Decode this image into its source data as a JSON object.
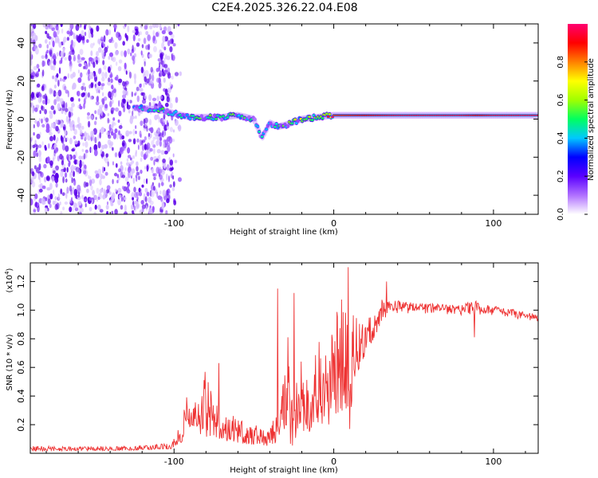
{
  "title": "C2E4.2025.326.22.04.E08",
  "chart_data": [
    {
      "type": "heatmap",
      "title": "C2E4.2025.326.22.04.E08",
      "xlabel": "Height of straight line (km)",
      "ylabel": "Frequency (Hz)",
      "xlim": [
        -190,
        128
      ],
      "ylim": [
        -50,
        50
      ],
      "x_ticks": [
        -100,
        0,
        100
      ],
      "x_tick_labels": [
        "-100",
        "0",
        "100"
      ],
      "y_ticks": [
        -40,
        -20,
        0,
        20,
        40
      ],
      "y_tick_labels": [
        "-40",
        "-20",
        "0",
        "20",
        "40"
      ],
      "colorbar": {
        "label": "Normalized spectral amplitude",
        "range": [
          0,
          1
        ],
        "ticks": [
          0.0,
          0.2,
          0.4,
          0.6,
          0.8
        ],
        "tick_labels": [
          "0.0",
          "0.2",
          "0.4",
          "0.6",
          "0.8"
        ],
        "colors": [
          "#ffffff",
          "#b070ff",
          "#5a00ff",
          "#0000ff",
          "#00c8ff",
          "#00ff60",
          "#a0ff00",
          "#ffff00",
          "#ff8000",
          "#ff0000",
          "#ff0070"
        ]
      },
      "ridge": {
        "x": [
          -125,
          -110,
          -100,
          -90,
          -80,
          -70,
          -60,
          -50,
          -45,
          -40,
          -35,
          -30,
          -20,
          -10,
          0,
          20,
          40,
          60,
          80,
          90,
          100,
          128
        ],
        "freq": [
          6,
          5,
          3,
          1,
          1,
          1,
          2,
          0,
          -10,
          -2,
          -4,
          -3,
          0,
          1,
          2,
          2,
          2,
          2,
          2,
          2,
          2,
          2
        ],
        "amplitude": [
          0.3,
          0.45,
          0.4,
          0.4,
          0.45,
          0.45,
          0.45,
          0.4,
          0.35,
          0.4,
          0.4,
          0.45,
          0.55,
          0.75,
          0.85,
          0.9,
          0.95,
          0.95,
          0.95,
          0.9,
          0.95,
          0.95
        ]
      },
      "noise_region": {
        "x_start": -190,
        "x_end": -100,
        "freq_range": [
          -50,
          50
        ]
      }
    },
    {
      "type": "line",
      "xlabel": "Height of straight line (km)",
      "ylabel": "SNR (10 * v/v)",
      "multiplier_label": "(x10",
      "multiplier_exp": "4",
      "multiplier_close": ")",
      "xlim": [
        -190,
        128
      ],
      "ylim": [
        0,
        13300
      ],
      "x_ticks": [
        -100,
        0,
        100
      ],
      "x_tick_labels": [
        "-100",
        "0",
        "100"
      ],
      "y_ticks": [
        2000,
        4000,
        6000,
        8000,
        10000,
        12000
      ],
      "y_tick_labels": [
        "0.2",
        "0.4",
        "0.6",
        "0.8",
        "1.0",
        "1.2"
      ],
      "color": "#ee3333",
      "envelope": {
        "x": [
          -190,
          -130,
          -102,
          -95,
          -92,
          -85,
          -80,
          -75,
          -70,
          -65,
          -60,
          -50,
          -40,
          -35,
          -30,
          -27,
          -25,
          -22,
          -20,
          -15,
          -10,
          -5,
          0,
          5,
          10,
          15,
          20,
          25,
          30,
          35,
          40,
          50,
          60,
          70,
          80,
          88,
          95,
          100,
          110,
          120,
          128
        ],
        "lo": [
          150,
          200,
          300,
          800,
          2000,
          1500,
          1000,
          1200,
          900,
          800,
          700,
          600,
          500,
          800,
          1800,
          600,
          500,
          2000,
          1500,
          1500,
          2000,
          1600,
          2500,
          3000,
          2500,
          5500,
          7000,
          8000,
          9000,
          9500,
          9800,
          9700,
          9700,
          9600,
          9600,
          9400,
          9600,
          9600,
          9500,
          9300,
          9100
        ],
        "hi": [
          500,
          500,
          700,
          2500,
          4000,
          3500,
          6000,
          3500,
          3200,
          2800,
          2400,
          2000,
          1800,
          3000,
          6000,
          11200,
          7000,
          5500,
          7000,
          5000,
          8000,
          7000,
          10000,
          11000,
          13000,
          9000,
          9500,
          10200,
          10800,
          10700,
          10700,
          10500,
          10500,
          10400,
          10400,
          10800,
          10400,
          10300,
          10100,
          9900,
          9700
        ]
      },
      "spikes": [
        [
          -72,
          6300
        ],
        [
          -35,
          11500
        ],
        [
          -25,
          11200
        ],
        [
          9,
          13000
        ],
        [
          33,
          12000
        ],
        [
          -100,
          1000
        ],
        [
          88,
          8100
        ],
        [
          10,
          1700
        ]
      ]
    }
  ]
}
